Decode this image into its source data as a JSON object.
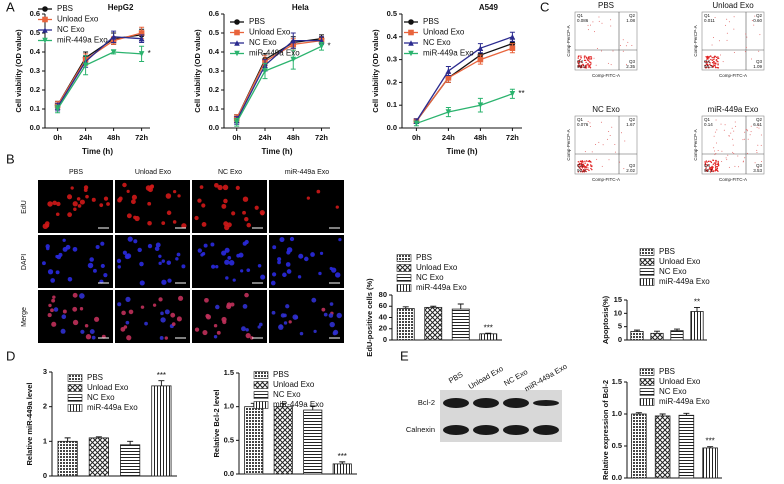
{
  "panel_labels": [
    "A",
    "B",
    "C",
    "D",
    "E"
  ],
  "chart_data": [
    {
      "type": "line",
      "title": "HepG2",
      "xlabel": "Time (h)",
      "ylabel": "Cell viability (OD value)",
      "categories": [
        "0h",
        "24h",
        "48h",
        "72h"
      ],
      "ylim": [
        0,
        0.6
      ],
      "yticks": [
        {
          "value": 0,
          "label": "0.0"
        },
        0.1,
        0.2,
        0.3,
        0.4,
        0.5,
        0.6
      ],
      "series": [
        {
          "name": "PBS",
          "color": "#111111",
          "marker": "circle",
          "values": [
            0.12,
            0.37,
            0.47,
            0.49
          ],
          "errors": [
            0.02,
            0.03,
            0.03,
            0.03
          ]
        },
        {
          "name": "Unload Exo",
          "color": "#e8643c",
          "marker": "square",
          "values": [
            0.12,
            0.36,
            0.46,
            0.5
          ],
          "errors": [
            0.02,
            0.03,
            0.02,
            0.03
          ]
        },
        {
          "name": "NC Exo",
          "color": "#2b2b8f",
          "marker": "triangle",
          "values": [
            0.11,
            0.35,
            0.48,
            0.47
          ],
          "errors": [
            0.02,
            0.03,
            0.03,
            0.02
          ]
        },
        {
          "name": "miR-449a Exo",
          "color": "#2bb36e",
          "marker": "triangle-down",
          "values": [
            0.1,
            0.33,
            0.4,
            0.39
          ],
          "errors": [
            0.02,
            0.05,
            0.01,
            0.04
          ],
          "annotation": "*"
        }
      ]
    },
    {
      "type": "line",
      "title": "Hela",
      "xlabel": "Time (h)",
      "ylabel": "Cell viability (OD value)",
      "categories": [
        "0h",
        "24h",
        "48h",
        "72h"
      ],
      "ylim": [
        0,
        0.6
      ],
      "yticks": [
        {
          "value": 0,
          "label": "0.0"
        },
        0.1,
        0.2,
        0.3,
        0.4,
        0.5,
        0.6
      ],
      "series": [
        {
          "name": "PBS",
          "color": "#111111",
          "marker": "circle",
          "values": [
            0.05,
            0.36,
            0.45,
            0.47
          ],
          "errors": [
            0.02,
            0.03,
            0.03,
            0.02
          ]
        },
        {
          "name": "Unload Exo",
          "color": "#e8643c",
          "marker": "square",
          "values": [
            0.05,
            0.35,
            0.44,
            0.46
          ],
          "errors": [
            0.02,
            0.03,
            0.03,
            0.02
          ]
        },
        {
          "name": "NC Exo",
          "color": "#2b2b8f",
          "marker": "triangle",
          "values": [
            0.04,
            0.33,
            0.46,
            0.46
          ],
          "errors": [
            0.02,
            0.03,
            0.04,
            0.02
          ]
        },
        {
          "name": "miR-449a Exo",
          "color": "#2bb36e",
          "marker": "triangle-down",
          "values": [
            0.03,
            0.3,
            0.36,
            0.43
          ],
          "errors": [
            0.02,
            0.04,
            0.05,
            0.02
          ],
          "annotation": "*"
        }
      ]
    },
    {
      "type": "line",
      "title": "A549",
      "xlabel": "Time (h)",
      "ylabel": "Cell viability (OD value)",
      "categories": [
        "0h",
        "24h",
        "48h",
        "72h"
      ],
      "ylim": [
        0,
        0.5
      ],
      "yticks": [
        {
          "value": 0,
          "label": "0.0"
        },
        0.1,
        0.2,
        0.3,
        0.4,
        0.5
      ],
      "series": [
        {
          "name": "PBS",
          "color": "#111111",
          "marker": "circle",
          "values": [
            0.03,
            0.22,
            0.32,
            0.37
          ],
          "errors": [
            0.01,
            0.02,
            0.02,
            0.02
          ]
        },
        {
          "name": "Unload Exo",
          "color": "#e8643c",
          "marker": "square",
          "values": [
            0.03,
            0.22,
            0.3,
            0.35
          ],
          "errors": [
            0.01,
            0.02,
            0.02,
            0.02
          ]
        },
        {
          "name": "NC Exo",
          "color": "#2b2b8f",
          "marker": "triangle",
          "values": [
            0.03,
            0.25,
            0.35,
            0.4
          ],
          "errors": [
            0.01,
            0.02,
            0.02,
            0.02
          ]
        },
        {
          "name": "miR-449a Exo",
          "color": "#2bb36e",
          "marker": "triangle-down",
          "values": [
            0.02,
            0.07,
            0.1,
            0.15
          ],
          "errors": [
            0.01,
            0.02,
            0.03,
            0.02
          ],
          "annotation": "**"
        }
      ]
    },
    {
      "type": "bar",
      "ylabel": "EdU-positive cells (%)",
      "categories": [
        "PBS",
        "Unload Exo",
        "NC Exo",
        "miR-449a Exo"
      ],
      "values": [
        56,
        58,
        55,
        11
      ],
      "errors": [
        3,
        2,
        9,
        1
      ],
      "significance": [
        null,
        null,
        null,
        "***"
      ],
      "patterns": [
        "dots",
        "cross",
        "horizontal",
        "vertical"
      ],
      "ylim": [
        0,
        80
      ],
      "yticks": [
        0,
        20,
        40,
        60,
        80
      ]
    },
    {
      "type": "bar",
      "ylabel": "Apoptosis(%)",
      "categories": [
        "PBS",
        "Unload Exo",
        "NC Exo",
        "miR-449a Exo"
      ],
      "values": [
        3.2,
        2.5,
        3.5,
        10.7
      ],
      "errors": [
        0.5,
        0.8,
        0.6,
        1.5
      ],
      "significance": [
        null,
        null,
        null,
        "**"
      ],
      "patterns": [
        "dots",
        "cross",
        "horizontal",
        "vertical"
      ],
      "ylim": [
        0,
        15
      ],
      "yticks": [
        0,
        5,
        10,
        15
      ]
    },
    {
      "type": "bar",
      "ylabel": "Relative miR-449a level",
      "categories": [
        "PBS",
        "Unload Exo",
        "NC Exo",
        "miR-449a Exo"
      ],
      "values": [
        1.0,
        1.1,
        0.9,
        2.6
      ],
      "errors": [
        0.1,
        0.03,
        0.1,
        0.15
      ],
      "significance": [
        null,
        null,
        null,
        "***"
      ],
      "patterns": [
        "dots",
        "cross",
        "horizontal",
        "vertical"
      ],
      "ylim": [
        0,
        3
      ],
      "yticks": [
        0,
        1,
        2,
        3
      ]
    },
    {
      "type": "bar",
      "ylabel": "Relative Bcl-2 level",
      "categories": [
        "PBS",
        "Unload Exo",
        "NC Exo",
        "miR-449a Exo"
      ],
      "values": [
        1.0,
        1.0,
        0.95,
        0.15
      ],
      "errors": [
        0.05,
        0.05,
        0.06,
        0.03
      ],
      "significance": [
        null,
        null,
        null,
        "***"
      ],
      "patterns": [
        "dots",
        "cross",
        "horizontal",
        "vertical"
      ],
      "ylim": [
        0,
        1.5
      ],
      "yticks": [
        {
          "value": 0,
          "label": "0.0"
        },
        0.5,
        {
          "value": 1,
          "label": "1.0"
        },
        1.5
      ]
    },
    {
      "type": "bar",
      "ylabel": "Relative expression of Bcl-2",
      "categories": [
        "PBS",
        "Unload Exo",
        "NC Exo",
        "miR-449a Exo"
      ],
      "values": [
        1.0,
        0.97,
        0.98,
        0.47
      ],
      "errors": [
        0.02,
        0.03,
        0.03,
        0.02
      ],
      "significance": [
        null,
        null,
        null,
        "***"
      ],
      "patterns": [
        "dots",
        "cross",
        "horizontal",
        "vertical"
      ],
      "ylim": [
        0,
        1.5
      ],
      "yticks": [
        {
          "value": 0,
          "label": "0.0"
        },
        0.5,
        {
          "value": 1,
          "label": "1.0"
        },
        1.5
      ]
    }
  ],
  "microscopy": {
    "columns": [
      "PBS",
      "Unload Exo",
      "NC Exo",
      "miR-449a Exo"
    ],
    "rows": [
      "EdU",
      "DAPI",
      "Merge"
    ]
  },
  "flow": {
    "x_label": "Comp-FITC-A",
    "y_label": "Comp-PerCP-A",
    "quadrant_names": [
      "Q1",
      "Q2",
      "Q4",
      "Q3"
    ],
    "plots": [
      {
        "title": "PBS",
        "quadrants": [
          "0.086",
          "1.08",
          "98.8",
          "2.35"
        ]
      },
      {
        "title": "Unload Exo",
        "quadrants": [
          "0.011",
          "0.60",
          "98.3",
          "1.09"
        ]
      },
      {
        "title": "NC Exo",
        "quadrants": [
          "0.076",
          "1.67",
          "96.3",
          "2.02"
        ]
      },
      {
        "title": "miR-449a Exo",
        "quadrants": [
          "0.14",
          "6.61",
          "90.1",
          "3.53"
        ]
      }
    ]
  },
  "western": {
    "lanes": [
      "PBS",
      "Unload Exo",
      "NC Exo",
      "miR-449a Exo"
    ],
    "bands": [
      "Bcl-2",
      "Calnexin"
    ]
  }
}
